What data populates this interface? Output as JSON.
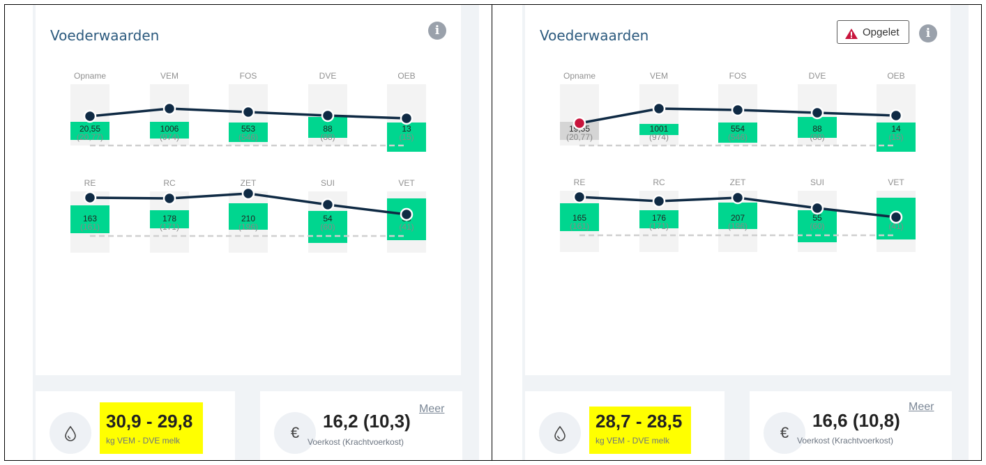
{
  "colors": {
    "title": "#2c5a7e",
    "bar_green": "#00d68f",
    "bar_grey": "#d5d5d5",
    "line": "#0f2a44",
    "dot_alert": "#c8143c",
    "highlight": "#ffff00"
  },
  "panels": [
    {
      "title": "Voederwaarden",
      "info_icon": "info-icon",
      "rows": [
        {
          "columns": [
            {
              "label": "Opname",
              "value": "20,55",
              "ref": "(20,77)",
              "bar": "green",
              "dot": "normal"
            },
            {
              "label": "VEM",
              "value": "1006",
              "ref": "(974)",
              "bar": "green",
              "dot": "normal"
            },
            {
              "label": "FOS",
              "value": "553",
              "ref": "(546)",
              "bar": "green",
              "dot": "normal"
            },
            {
              "label": "DVE",
              "value": "88",
              "ref": "(88)",
              "bar": "green",
              "dot": "normal"
            },
            {
              "label": "OEB",
              "value": "13",
              "ref": "(15)",
              "bar": "green",
              "dot": "normal"
            }
          ]
        },
        {
          "columns": [
            {
              "label": "RE",
              "value": "163",
              "ref": "(161)",
              "bar": "green",
              "dot": "normal"
            },
            {
              "label": "RC",
              "value": "178",
              "ref": "(171)",
              "bar": "green",
              "dot": "normal"
            },
            {
              "label": "ZET",
              "value": "210",
              "ref": "(196)",
              "bar": "green",
              "dot": "normal"
            },
            {
              "label": "SUI",
              "value": "54",
              "ref": "(60)",
              "bar": "green",
              "dot": "normal"
            },
            {
              "label": "VET",
              "value": "35",
              "ref": "(41)",
              "bar": "green",
              "dot": "normal"
            }
          ]
        }
      ],
      "milk": {
        "icon": "droplet-icon",
        "value": "30,9 - 29,8",
        "label": "kg VEM - DVE melk"
      },
      "cost": {
        "icon": "euro-icon",
        "value": "16,2 (10,3)",
        "label": "Voerkost (Krachtvoerkost)",
        "link": "Meer"
      }
    },
    {
      "title": "Voederwaarden",
      "info_icon": "info-icon",
      "warning": {
        "icon": "warning-triangle-icon",
        "label": "Opgelet"
      },
      "rows": [
        {
          "columns": [
            {
              "label": "Opname",
              "value": "19,55",
              "ref": "(20,77)",
              "bar": "grey",
              "dot": "alert"
            },
            {
              "label": "VEM",
              "value": "1001",
              "ref": "(974)",
              "bar": "green",
              "dot": "normal"
            },
            {
              "label": "FOS",
              "value": "554",
              "ref": "(546)",
              "bar": "green",
              "dot": "normal"
            },
            {
              "label": "DVE",
              "value": "88",
              "ref": "(88)",
              "bar": "green",
              "dot": "normal"
            },
            {
              "label": "OEB",
              "value": "14",
              "ref": "(15)",
              "bar": "green",
              "dot": "normal"
            }
          ]
        },
        {
          "columns": [
            {
              "label": "RE",
              "value": "165",
              "ref": "(161)",
              "bar": "green",
              "dot": "normal"
            },
            {
              "label": "RC",
              "value": "176",
              "ref": "(171)",
              "bar": "green",
              "dot": "normal"
            },
            {
              "label": "ZET",
              "value": "207",
              "ref": "(196)",
              "bar": "green",
              "dot": "normal"
            },
            {
              "label": "SUI",
              "value": "55",
              "ref": "(60)",
              "bar": "green",
              "dot": "normal"
            },
            {
              "label": "VET",
              "value": "35",
              "ref": "(41)",
              "bar": "green",
              "dot": "normal"
            }
          ]
        }
      ],
      "milk": {
        "icon": "droplet-icon",
        "value": "28,7 - 28,5",
        "label": "kg VEM - DVE melk"
      },
      "cost": {
        "icon": "euro-icon",
        "value": "16,6 (10,8)",
        "label": "Voerkost (Krachtvoerkost)",
        "link": "Meer"
      }
    }
  ]
}
